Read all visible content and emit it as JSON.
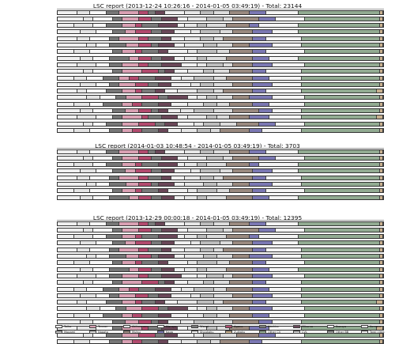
{
  "colors": {
    "Taiho": "#efefef",
    "Tenzan": "#d9a0b3",
    "Akitsumaru": "#e4e4e4",
    "Maruyu": "#f8f8f8",
    "Wsagi": "#777777",
    "Agano": "#b24a6e",
    "Noshiro": "#7a7a7a",
    "Mikuma": "#6a4758",
    "Suzuya": "#f0f0f0",
    "Kumano": "#e6e6e6",
    "Mogami": "#bdbdbd",
    "Nagato": "#dcdcdc",
    "Mutsu": "#9a8a80",
    "Kaga": "#7b78b3",
    "Shoukaku": "#f4f4f4",
    "Zuikaku": "#c8b08e",
    "Other CV": "#92ab92",
    "CVL": "#cfcfcf",
    "Other BB": "#9a9a9a",
    "Torai class": "#f2f2f2"
  },
  "reports": [
    {
      "title": "LSC report (2013-12-24 10:26:16 - 2014-01-05 03:49:19) - Total: 23144",
      "rows": [
        {
          "recipe": "",
          "values": [
            6,
            4,
            5,
            4,
            6,
            3,
            2,
            3,
            6,
            5,
            4,
            5,
            6,
            5,
            10,
            25,
            1
          ]
        },
        {
          "recipe": "",
          "values": [
            8,
            3,
            6,
            3,
            5,
            4,
            3,
            5,
            3,
            6,
            5,
            3,
            8,
            5,
            9,
            23,
            1
          ]
        },
        {
          "recipe": "",
          "values": [
            5,
            6,
            4,
            5,
            4,
            2,
            5,
            6,
            2,
            4,
            3,
            6,
            7,
            3,
            12,
            25,
            1
          ]
        },
        {
          "recipe": "",
          "values": [
            7,
            5,
            5,
            4,
            3,
            5,
            3,
            4,
            5,
            3,
            6,
            4,
            6,
            6,
            8,
            25,
            1
          ]
        },
        {
          "recipe": "",
          "values": [
            6,
            4,
            6,
            3,
            6,
            3,
            4,
            3,
            4,
            5,
            4,
            3,
            9,
            4,
            11,
            24,
            1
          ]
        },
        {
          "recipe": "",
          "values": [
            9,
            3,
            4,
            5,
            4,
            4,
            2,
            5,
            3,
            6,
            4,
            5,
            5,
            7,
            9,
            24,
            1
          ]
        },
        {
          "recipe": "",
          "values": [
            5,
            5,
            7,
            3,
            4,
            2,
            5,
            3,
            6,
            3,
            6,
            4,
            7,
            4,
            12,
            23,
            1
          ]
        },
        {
          "recipe": "",
          "values": [
            7,
            4,
            5,
            6,
            3,
            4,
            3,
            4,
            3,
            4,
            3,
            6,
            8,
            5,
            9,
            25,
            1
          ]
        },
        {
          "recipe": "",
          "values": [
            6,
            6,
            4,
            4,
            5,
            3,
            4,
            6,
            5,
            3,
            5,
            3,
            6,
            6,
            10,
            23,
            1
          ]
        },
        {
          "recipe": "",
          "values": [
            8,
            3,
            6,
            3,
            6,
            5,
            2,
            3,
            4,
            5,
            3,
            5,
            7,
            4,
            11,
            24,
            1
          ]
        },
        {
          "recipe": "",
          "values": [
            5,
            4,
            5,
            5,
            3,
            3,
            5,
            5,
            3,
            4,
            6,
            4,
            8,
            5,
            10,
            24,
            1
          ]
        },
        {
          "recipe": "",
          "values": [
            7,
            5,
            4,
            3,
            5,
            4,
            3,
            4,
            6,
            3,
            4,
            6,
            6,
            6,
            9,
            24,
            1
          ]
        },
        {
          "recipe": "",
          "values": [
            6,
            3,
            6,
            5,
            4,
            2,
            4,
            3,
            4,
            6,
            5,
            3,
            9,
            4,
            11,
            23,
            2
          ]
        },
        {
          "recipe": "",
          "values": [
            9,
            4,
            5,
            3,
            5,
            5,
            3,
            6,
            3,
            3,
            3,
            5,
            5,
            7,
            10,
            23,
            1
          ]
        },
        {
          "recipe": "",
          "values": [
            5,
            5,
            4,
            6,
            3,
            3,
            5,
            4,
            5,
            5,
            4,
            4,
            7,
            5,
            11,
            23,
            1
          ]
        },
        {
          "recipe": "",
          "values": [
            7,
            4,
            6,
            4,
            4,
            4,
            2,
            3,
            4,
            4,
            6,
            6,
            8,
            4,
            9,
            24,
            1
          ]
        },
        {
          "recipe": "",
          "values": [
            6,
            6,
            5,
            3,
            6,
            2,
            4,
            5,
            3,
            6,
            3,
            4,
            6,
            6,
            10,
            23,
            2
          ]
        },
        {
          "recipe": "",
          "values": [
            8,
            3,
            4,
            5,
            5,
            5,
            3,
            4,
            5,
            3,
            5,
            5,
            7,
            5,
            9,
            23,
            1
          ]
        },
        {
          "recipe": "",
          "values": [
            5,
            5,
            6,
            4,
            3,
            3,
            5,
            3,
            4,
            5,
            4,
            3,
            9,
            4,
            12,
            24,
            1
          ]
        }
      ]
    },
    {
      "title": "LSC report (2014-01-03 10:48:54 - 2014-01-05 03:49:19) - Total: 3703",
      "rows": [
        {
          "recipe": "",
          "values": [
            6,
            4,
            5,
            4,
            6,
            3,
            2,
            3,
            6,
            5,
            4,
            5,
            6,
            5,
            10,
            25,
            1
          ]
        },
        {
          "recipe": "",
          "values": [
            8,
            3,
            6,
            3,
            5,
            4,
            3,
            5,
            3,
            6,
            5,
            3,
            8,
            5,
            9,
            23,
            1
          ]
        },
        {
          "recipe": "",
          "values": [
            5,
            6,
            4,
            5,
            4,
            2,
            5,
            6,
            2,
            4,
            3,
            6,
            7,
            3,
            12,
            25,
            1
          ]
        },
        {
          "recipe": "",
          "values": [
            7,
            5,
            5,
            4,
            3,
            5,
            3,
            4,
            5,
            3,
            6,
            4,
            6,
            6,
            8,
            25,
            1
          ]
        },
        {
          "recipe": "",
          "values": [
            6,
            4,
            6,
            3,
            6,
            3,
            4,
            3,
            4,
            5,
            4,
            3,
            9,
            4,
            11,
            24,
            1
          ]
        },
        {
          "recipe": "",
          "values": [
            9,
            3,
            4,
            5,
            4,
            4,
            2,
            5,
            3,
            6,
            4,
            5,
            5,
            7,
            9,
            24,
            1
          ]
        },
        {
          "recipe": "",
          "values": [
            5,
            5,
            7,
            3,
            4,
            2,
            5,
            3,
            6,
            3,
            6,
            4,
            7,
            4,
            12,
            23,
            1
          ]
        },
        {
          "recipe": "",
          "values": [
            7,
            4,
            5,
            6,
            3,
            4,
            3,
            4,
            3,
            4,
            3,
            6,
            8,
            5,
            9,
            25,
            1
          ]
        }
      ]
    },
    {
      "title": "LSC report (2013-12-29 00:00:18 - 2014-01-05 03:49:19) - Total: 12395",
      "rows": [
        {
          "recipe": "",
          "values": [
            6,
            4,
            5,
            4,
            6,
            3,
            2,
            3,
            6,
            5,
            4,
            5,
            6,
            5,
            10,
            25,
            1
          ]
        },
        {
          "recipe": "",
          "values": [
            8,
            3,
            6,
            3,
            5,
            4,
            3,
            5,
            3,
            6,
            5,
            3,
            8,
            5,
            9,
            23,
            1
          ]
        },
        {
          "recipe": "",
          "values": [
            5,
            6,
            4,
            5,
            4,
            2,
            5,
            6,
            2,
            4,
            3,
            6,
            7,
            3,
            12,
            25,
            1
          ]
        },
        {
          "recipe": "",
          "values": [
            7,
            5,
            5,
            4,
            3,
            5,
            3,
            4,
            5,
            3,
            6,
            4,
            6,
            6,
            8,
            25,
            1
          ]
        },
        {
          "recipe": "",
          "values": [
            6,
            4,
            6,
            3,
            6,
            3,
            4,
            3,
            4,
            5,
            4,
            3,
            9,
            4,
            11,
            24,
            1
          ]
        },
        {
          "recipe": "",
          "values": [
            9,
            3,
            4,
            5,
            4,
            4,
            2,
            5,
            3,
            6,
            4,
            5,
            5,
            7,
            9,
            24,
            1
          ]
        },
        {
          "recipe": "",
          "values": [
            5,
            5,
            7,
            3,
            4,
            2,
            5,
            3,
            6,
            3,
            6,
            4,
            7,
            4,
            12,
            23,
            1
          ]
        },
        {
          "recipe": "",
          "values": [
            7,
            4,
            5,
            6,
            3,
            4,
            3,
            4,
            3,
            4,
            3,
            6,
            8,
            5,
            9,
            25,
            1
          ]
        },
        {
          "recipe": "",
          "values": [
            6,
            6,
            4,
            4,
            5,
            3,
            4,
            6,
            5,
            3,
            5,
            3,
            6,
            6,
            10,
            23,
            1
          ]
        },
        {
          "recipe": "",
          "values": [
            8,
            3,
            6,
            3,
            6,
            5,
            2,
            3,
            4,
            5,
            3,
            5,
            7,
            4,
            11,
            24,
            1
          ]
        },
        {
          "recipe": "",
          "values": [
            5,
            4,
            5,
            5,
            3,
            3,
            5,
            5,
            3,
            4,
            6,
            4,
            8,
            5,
            10,
            24,
            1
          ]
        },
        {
          "recipe": "",
          "values": [
            7,
            5,
            4,
            3,
            5,
            4,
            3,
            4,
            6,
            3,
            4,
            6,
            6,
            6,
            9,
            24,
            1
          ]
        },
        {
          "recipe": "",
          "values": [
            6,
            3,
            6,
            5,
            4,
            2,
            4,
            3,
            4,
            6,
            5,
            3,
            9,
            4,
            11,
            23,
            2
          ]
        },
        {
          "recipe": "",
          "values": [
            9,
            4,
            5,
            3,
            5,
            5,
            3,
            6,
            3,
            3,
            3,
            5,
            5,
            7,
            10,
            23,
            1
          ]
        },
        {
          "recipe": "",
          "values": [
            5,
            5,
            4,
            6,
            3,
            3,
            5,
            4,
            5,
            5,
            4,
            4,
            7,
            5,
            11,
            23,
            1
          ]
        },
        {
          "recipe": "",
          "values": [
            7,
            4,
            6,
            4,
            4,
            4,
            2,
            3,
            4,
            4,
            6,
            6,
            8,
            4,
            9,
            24,
            1
          ]
        },
        {
          "recipe": "",
          "values": [
            6,
            6,
            5,
            3,
            6,
            2,
            4,
            5,
            3,
            6,
            3,
            4,
            6,
            6,
            10,
            23,
            2
          ]
        },
        {
          "recipe": "",
          "values": [
            8,
            3,
            4,
            5,
            5,
            5,
            3,
            4,
            5,
            3,
            5,
            5,
            7,
            5,
            9,
            23,
            1
          ]
        },
        {
          "recipe": "",
          "values": [
            5,
            5,
            6,
            4,
            3,
            3,
            5,
            3,
            4,
            5,
            4,
            3,
            9,
            4,
            12,
            24,
            1
          ]
        }
      ]
    }
  ],
  "chart_data": {
    "type": "bar",
    "stacked": true,
    "orientation": "horizontal",
    "unit": "%",
    "series_order": [
      "Taiho",
      "Akitsumaru",
      "Maruyu",
      "Wsagi",
      "Tenzan",
      "Agano",
      "Noshiro",
      "Mikuma",
      "Suzuya",
      "Kumano",
      "Mogami",
      "Nagato",
      "Mutsu",
      "Kaga",
      "Shoukaku",
      "Other CV",
      "Zuikaku"
    ],
    "legend": {
      "placement": "bottom",
      "entries": [
        "Taiho",
        "Tenzan",
        "Akitsumaru",
        "Maruyu",
        "Wsagi",
        "Agano",
        "Noshiro",
        "Mikuma",
        "Suzuya",
        "Kumano",
        "Mogami",
        "Nagato",
        "Mutsu",
        "Kaga",
        "Shoukaku",
        "Zuikaku",
        "Other CV",
        "CVL",
        "Other BB",
        "Torai class"
      ]
    }
  }
}
